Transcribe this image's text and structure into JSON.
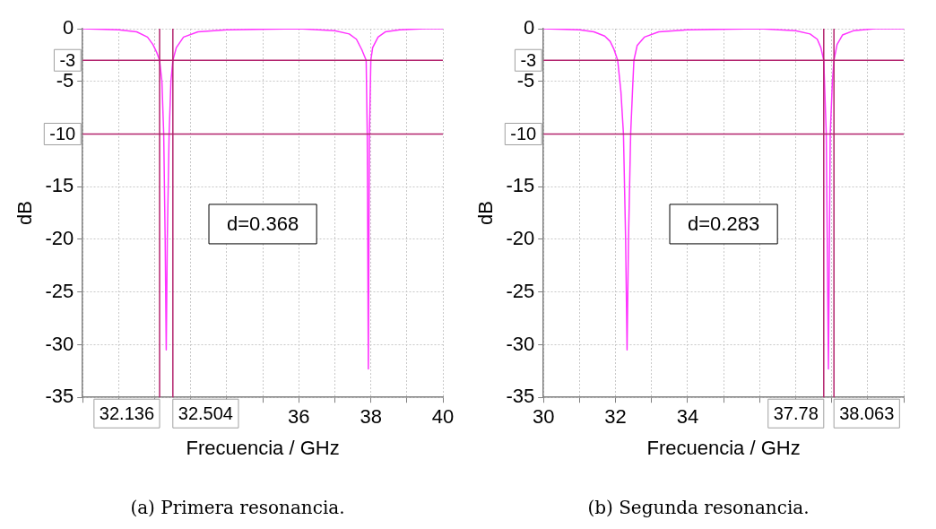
{
  "chart_data": [
    {
      "type": "line",
      "xlabel": "Frecuencia / GHz",
      "ylabel": "dB",
      "xlim": [
        30,
        40
      ],
      "ylim": [
        -35,
        0
      ],
      "xticks": [
        {
          "value": 30,
          "label": null
        },
        {
          "value": 31,
          "label": null
        },
        {
          "value": 32,
          "label": null
        },
        {
          "value": 33,
          "label": null
        },
        {
          "value": 34,
          "label": null
        },
        {
          "value": 35,
          "label": null
        },
        36,
        {
          "value": 37,
          "label": null
        },
        38,
        {
          "value": 39,
          "label": null
        },
        40
      ],
      "yticks": [
        0,
        -5,
        {
          "value": -10,
          "label": null
        },
        -15,
        -20,
        -25,
        -30,
        -35
      ],
      "grid": true,
      "marker": "none",
      "line_style": "solid",
      "series": [
        {
          "color": "#ff33ff",
          "x": [
            30,
            31,
            31.5,
            31.8,
            31.95,
            32.05,
            32.136,
            32.2,
            32.25,
            32.29,
            32.32,
            32.35,
            32.4,
            32.45,
            32.504,
            32.6,
            32.8,
            33.2,
            34,
            36,
            37,
            37.4,
            37.6,
            37.75,
            37.87,
            37.9,
            37.93,
            37.96,
            38.0,
            38.05,
            38.2,
            38.4,
            38.8,
            39.5,
            40
          ],
          "values": [
            0,
            -0.1,
            -0.3,
            -0.8,
            -1.5,
            -2.2,
            -3,
            -5,
            -10,
            -20,
            -30.5,
            -20,
            -10,
            -5,
            -3,
            -1.8,
            -0.8,
            -0.3,
            -0.1,
            0,
            -0.2,
            -0.5,
            -1,
            -2,
            -3,
            -10,
            -32.3,
            -10,
            -3,
            -1.8,
            -0.8,
            -0.3,
            -0.1,
            0,
            0
          ]
        }
      ],
      "ref_lines": [
        {
          "axis": "y",
          "value": -3,
          "label": "-3",
          "color": "#b3246e"
        },
        {
          "axis": "y",
          "value": -10,
          "label": "-10",
          "color": "#b3246e"
        },
        {
          "axis": "x",
          "value": 32.136,
          "label": "32.136",
          "color": "#b3246e"
        },
        {
          "axis": "x",
          "value": 32.504,
          "label": "32.504",
          "color": "#b3246e"
        }
      ],
      "annotations": [
        "d=0.368",
        "(a) Primera resonancia."
      ]
    },
    {
      "type": "line",
      "xlabel": "Frecuencia / GHz",
      "ylabel": "dB",
      "xlim": [
        30,
        40
      ],
      "ylim": [
        -35,
        0
      ],
      "xticks": [
        30,
        {
          "value": 31,
          "label": null
        },
        32,
        {
          "value": 33,
          "label": null
        },
        34,
        {
          "value": 35,
          "label": null
        },
        {
          "value": 36,
          "label": null
        },
        {
          "value": 37,
          "label": null
        },
        {
          "value": 38,
          "label": null
        },
        {
          "value": 39,
          "label": null
        },
        {
          "value": 40,
          "label": null
        }
      ],
      "yticks": [
        0,
        -5,
        {
          "value": -10,
          "label": null
        },
        -15,
        -20,
        -25,
        -30,
        -35
      ],
      "grid": true,
      "marker": "none",
      "line_style": "solid",
      "series": [
        {
          "color": "#ff33ff",
          "x": [
            30,
            31,
            31.4,
            31.7,
            31.85,
            31.95,
            32.06,
            32.15,
            32.22,
            32.28,
            32.32,
            32.36,
            32.42,
            32.47,
            32.51,
            32.6,
            32.8,
            33.2,
            34,
            36,
            37,
            37.4,
            37.6,
            37.7,
            37.78,
            37.85,
            37.91,
            37.96,
            38.02,
            38.063,
            38.15,
            38.3,
            38.6,
            39.2,
            40
          ],
          "values": [
            0,
            -0.1,
            -0.3,
            -0.7,
            -1.2,
            -1.9,
            -3,
            -6,
            -10,
            -20,
            -30.5,
            -20,
            -10,
            -6,
            -3,
            -1.6,
            -0.8,
            -0.3,
            -0.1,
            0,
            -0.2,
            -0.5,
            -1,
            -1.8,
            -3,
            -10,
            -32.3,
            -10,
            -5,
            -3,
            -1.5,
            -0.6,
            -0.2,
            0,
            0
          ]
        }
      ],
      "ref_lines": [
        {
          "axis": "y",
          "value": -3,
          "label": "-3",
          "color": "#b3246e"
        },
        {
          "axis": "y",
          "value": -10,
          "label": "-10",
          "color": "#b3246e"
        },
        {
          "axis": "x",
          "value": 37.78,
          "label": "37.78",
          "color": "#b3246e"
        },
        {
          "axis": "x",
          "value": 38.063,
          "label": "38.063",
          "color": "#b3246e"
        }
      ],
      "annotations": [
        "d=0.283",
        "(b) Segunda resonancia."
      ]
    }
  ]
}
